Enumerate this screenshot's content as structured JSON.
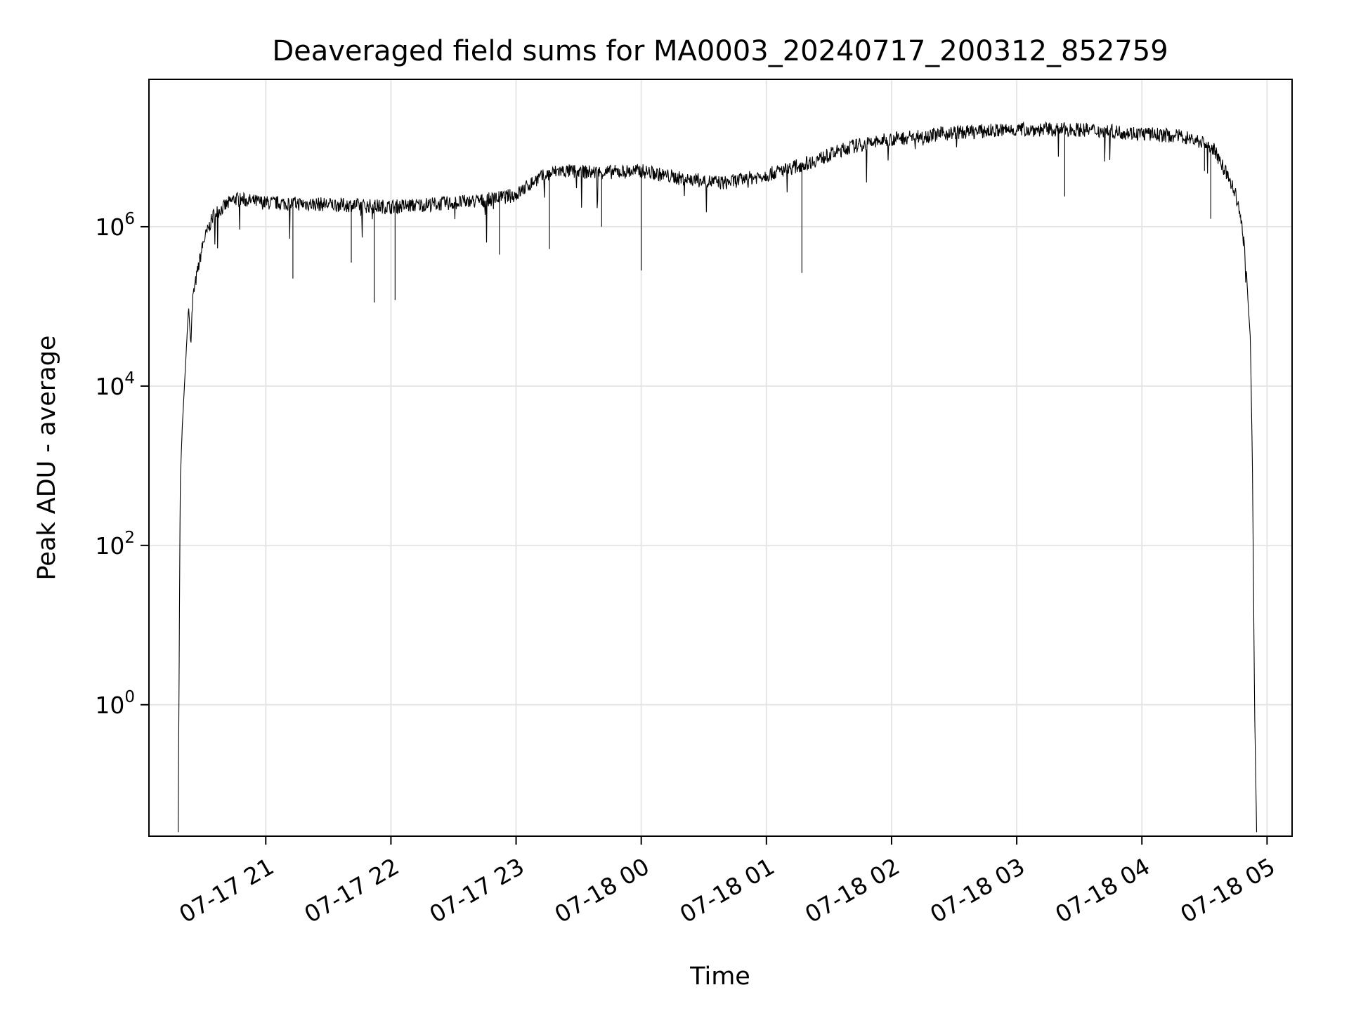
{
  "chart_data": {
    "type": "line",
    "title": "Deaveraged field sums for MA0003_20240717_200312_852759",
    "xlabel": "Time",
    "ylabel": "Peak ADU - average",
    "yscale": "log",
    "grid": true,
    "legend": "none",
    "line_color": "#000000",
    "grid_color": "#e6e6e6",
    "xlim": [
      "2024-07-17 20:04",
      "2024-07-18 05:12"
    ],
    "ylim_log10": [
      -1.65,
      7.85
    ],
    "x_ticks": [
      {
        "t": "2024-07-17 21:00",
        "label": "07-17 21"
      },
      {
        "t": "2024-07-17 22:00",
        "label": "07-17 22"
      },
      {
        "t": "2024-07-17 23:00",
        "label": "07-17 23"
      },
      {
        "t": "2024-07-18 00:00",
        "label": "07-18 00"
      },
      {
        "t": "2024-07-18 01:00",
        "label": "07-18 01"
      },
      {
        "t": "2024-07-18 02:00",
        "label": "07-18 02"
      },
      {
        "t": "2024-07-18 03:00",
        "label": "07-18 03"
      },
      {
        "t": "2024-07-18 04:00",
        "label": "07-18 04"
      },
      {
        "t": "2024-07-18 05:00",
        "label": "07-18 05"
      }
    ],
    "y_ticks": [
      {
        "exp": 0,
        "base": "10",
        "sup": "0"
      },
      {
        "exp": 2,
        "base": "10",
        "sup": "2"
      },
      {
        "exp": 4,
        "base": "10",
        "sup": "4"
      },
      {
        "exp": 6,
        "base": "10",
        "sup": "6"
      }
    ],
    "series": [
      {
        "points": [
          [
            "2024-07-17 20:18",
            -1.6
          ],
          [
            "2024-07-17 20:19",
            2.8
          ],
          [
            "2024-07-17 20:20",
            3.5
          ],
          [
            "2024-07-17 20:21",
            4.0
          ],
          [
            "2024-07-17 20:22",
            4.5
          ],
          [
            "2024-07-17 20:23",
            5.0
          ],
          [
            "2024-07-17 20:24",
            4.55
          ],
          [
            "2024-07-17 20:25",
            5.1
          ],
          [
            "2024-07-17 20:27",
            5.4
          ],
          [
            "2024-07-17 20:30",
            5.8
          ],
          [
            "2024-07-17 20:35",
            6.15
          ],
          [
            "2024-07-17 20:45",
            6.35
          ],
          [
            "2024-07-17 21:00",
            6.3
          ],
          [
            "2024-07-17 21:30",
            6.28
          ],
          [
            "2024-07-17 22:00",
            6.25
          ],
          [
            "2024-07-17 22:30",
            6.3
          ],
          [
            "2024-07-17 22:45",
            6.33
          ],
          [
            "2024-07-17 23:00",
            6.4
          ],
          [
            "2024-07-17 23:10",
            6.6
          ],
          [
            "2024-07-17 23:20",
            6.7
          ],
          [
            "2024-07-17 23:40",
            6.68
          ],
          [
            "2024-07-18 00:00",
            6.7
          ],
          [
            "2024-07-18 00:20",
            6.6
          ],
          [
            "2024-07-18 00:40",
            6.55
          ],
          [
            "2024-07-18 01:00",
            6.65
          ],
          [
            "2024-07-18 01:20",
            6.8
          ],
          [
            "2024-07-18 01:40",
            7.0
          ],
          [
            "2024-07-18 02:00",
            7.1
          ],
          [
            "2024-07-18 02:30",
            7.18
          ],
          [
            "2024-07-18 03:00",
            7.22
          ],
          [
            "2024-07-18 03:30",
            7.22
          ],
          [
            "2024-07-18 04:00",
            7.17
          ],
          [
            "2024-07-18 04:20",
            7.13
          ],
          [
            "2024-07-18 04:30",
            7.05
          ],
          [
            "2024-07-18 04:35",
            6.95
          ],
          [
            "2024-07-18 04:40",
            6.7
          ],
          [
            "2024-07-18 04:45",
            6.4
          ],
          [
            "2024-07-18 04:48",
            6.0
          ],
          [
            "2024-07-18 04:50",
            5.5
          ],
          [
            "2024-07-18 04:51",
            5.0
          ],
          [
            "2024-07-18 04:52",
            4.6
          ],
          [
            "2024-07-18 04:53",
            3.0
          ],
          [
            "2024-07-18 04:54",
            0.0
          ],
          [
            "2024-07-18 04:55",
            -1.6
          ]
        ],
        "noise_log10": 0.09,
        "dips": [
          [
            "2024-07-17 21:13",
            5.35
          ],
          [
            "2024-07-17 21:52",
            5.05
          ],
          [
            "2024-07-17 21:41",
            5.55
          ],
          [
            "2024-07-17 22:02",
            5.08
          ],
          [
            "2024-07-17 22:52",
            5.65
          ],
          [
            "2024-07-17 23:16",
            5.72
          ],
          [
            "2024-07-17 23:41",
            6.0
          ],
          [
            "2024-07-18 00:00",
            5.45
          ],
          [
            "2024-07-18 01:17",
            5.42
          ],
          [
            "2024-07-18 03:23",
            6.38
          ],
          [
            "2024-07-18 04:33",
            6.1
          ],
          [
            "2024-07-18 04:30",
            6.7
          ]
        ]
      }
    ]
  }
}
